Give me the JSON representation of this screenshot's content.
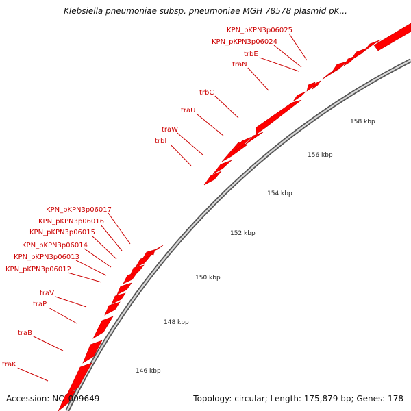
{
  "title": "Klebsiella pneumoniae subsp. pneumoniae MGH 78578 plasmid pK...",
  "footer": {
    "accession": "Accession: NC_009649",
    "summary": "Topology: circular; Length: 175,879 bp; Genes: 178"
  },
  "colors": {
    "gene": "#ff0000",
    "label": "#cc0000",
    "tick": "#119911",
    "backbone": "#888888"
  },
  "scale_labels": [
    "146 kbp",
    "148 kbp",
    "150 kbp",
    "152 kbp",
    "154 kbp",
    "156 kbp",
    "158 kbp"
  ],
  "gene_labels": [
    "KPN_pKPN3p06025",
    "KPN_pKPN3p06024",
    "trbE",
    "traN",
    "trbC",
    "traU",
    "traW",
    "trbI",
    "KPN_pKPN3p06017",
    "KPN_pKPN3p06016",
    "KPN_pKPN3p06015",
    "KPN_pKPN3p06014",
    "KPN_pKPN3p06013",
    "KPN_pKPN3p06012",
    "traV",
    "traP",
    "traB",
    "traK"
  ]
}
